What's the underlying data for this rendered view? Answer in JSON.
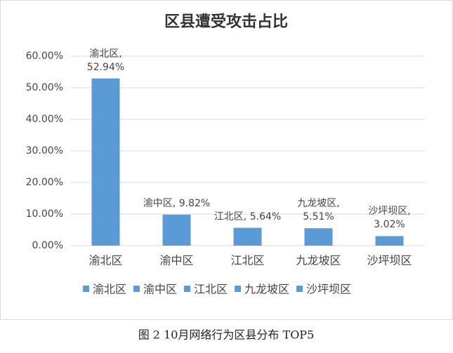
{
  "chart_data": {
    "type": "bar",
    "title": "区县遭受攻击占比",
    "categories": [
      "渝北区",
      "渝中区",
      "江北区",
      "九龙坡区",
      "沙坪坝区"
    ],
    "values": [
      52.94,
      9.82,
      5.64,
      5.51,
      3.02
    ],
    "value_labels": [
      "渝北区, 52.94%",
      "渝中区, 9.82%",
      "江北区, 5.64%",
      "九龙坡区, 5.51%",
      "沙坪坝区, 3.02%"
    ],
    "color": "#5b9bd5",
    "ylim": [
      0,
      60
    ],
    "yticks": [
      {
        "value": 0,
        "label": "0.00%"
      },
      {
        "value": 10,
        "label": "10.00%"
      },
      {
        "value": 20,
        "label": "20.00%"
      },
      {
        "value": 30,
        "label": "30.00%"
      },
      {
        "value": 40,
        "label": "40.00%"
      },
      {
        "value": 50,
        "label": "50.00%"
      },
      {
        "value": 60,
        "label": "60.00%"
      }
    ],
    "grid": true,
    "legend": "bottom",
    "caption": "图 2   10月网络行为区县分布 TOP5"
  }
}
